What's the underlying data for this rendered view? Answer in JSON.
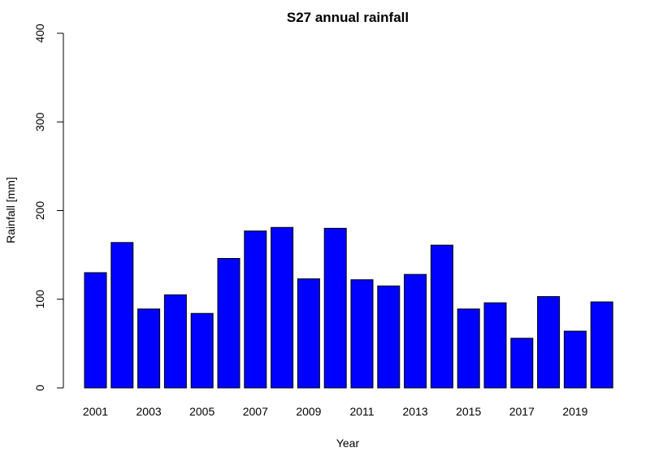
{
  "chart_data": {
    "type": "bar",
    "title": "S27 annual rainfall",
    "xlabel": "Year",
    "ylabel": "Rainfall [mm]",
    "ylim": [
      0,
      400
    ],
    "yticks": [
      0,
      100,
      200,
      300,
      400
    ],
    "categories": [
      "2001",
      "2002",
      "2003",
      "2004",
      "2005",
      "2006",
      "2007",
      "2008",
      "2009",
      "2010",
      "2011",
      "2012",
      "2013",
      "2014",
      "2015",
      "2016",
      "2017",
      "2018",
      "2019",
      "2020"
    ],
    "x_tick_labels_shown": [
      "2001",
      "2003",
      "2005",
      "2007",
      "2009",
      "2011",
      "2013",
      "2015",
      "2017",
      "2019"
    ],
    "values": [
      130,
      164,
      89,
      105,
      84,
      146,
      177,
      181,
      123,
      180,
      122,
      115,
      128,
      161,
      89,
      96,
      56,
      103,
      64,
      97
    ],
    "bar_color": "#0000ff",
    "grid": false,
    "legend": "none"
  }
}
